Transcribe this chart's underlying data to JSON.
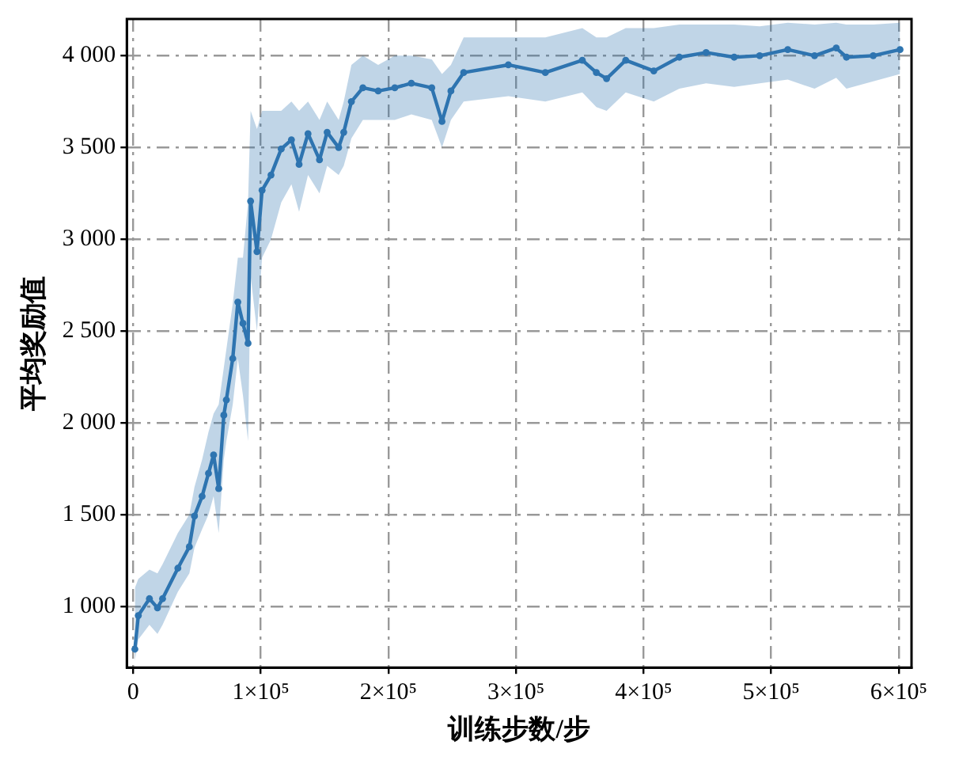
{
  "chart_data": {
    "type": "line",
    "xlabel": "训练步数/步",
    "ylabel": "平均奖励值",
    "xlim": [
      -5000,
      610000
    ],
    "ylim": [
      667,
      4200
    ],
    "xticks": [
      {
        "value": 0,
        "label": "0"
      },
      {
        "value": 100000,
        "label": "1×10⁵"
      },
      {
        "value": 200000,
        "label": "2×10⁵"
      },
      {
        "value": 300000,
        "label": "3×10⁵"
      },
      {
        "value": 400000,
        "label": "4×10⁵"
      },
      {
        "value": 500000,
        "label": "5×10⁵"
      },
      {
        "value": 600000,
        "label": "6×10⁵"
      }
    ],
    "yticks": [
      {
        "value": 1000,
        "label": "1 000"
      },
      {
        "value": 1500,
        "label": "1 500"
      },
      {
        "value": 2000,
        "label": "2 000"
      },
      {
        "value": 2500,
        "label": "2 500"
      },
      {
        "value": 3000,
        "label": "3 000"
      },
      {
        "value": 3500,
        "label": "3 500"
      },
      {
        "value": 4000,
        "label": "4 000"
      }
    ],
    "grid": true,
    "legend": false,
    "marker": "circle",
    "line_style": "solid",
    "series": [
      {
        "color": "#2e75b0",
        "x": [
          1300,
          4000,
          12700,
          19000,
          23000,
          35000,
          44000,
          48000,
          54000,
          59000,
          63000,
          67000,
          71000,
          73000,
          78000,
          82000,
          86000,
          90000,
          92000,
          97000,
          101000,
          108000,
          116000,
          124000,
          130000,
          137000,
          146000,
          152000,
          161000,
          165000,
          171000,
          180000,
          192000,
          205000,
          218000,
          234000,
          242000,
          249000,
          259000,
          294000,
          323000,
          352000,
          363000,
          371000,
          386000,
          408000,
          428000,
          449000,
          471000,
          491000,
          513000,
          534000,
          551000,
          559000,
          580000,
          601000
        ],
        "values": [
          767,
          950,
          1042,
          992,
          1042,
          1208,
          1325,
          1492,
          1600,
          1725,
          1825,
          1642,
          2042,
          2125,
          2350,
          2658,
          2542,
          2433,
          3208,
          2933,
          3267,
          3350,
          3492,
          3542,
          3408,
          3575,
          3433,
          3583,
          3500,
          3583,
          3750,
          3825,
          3808,
          3825,
          3850,
          3825,
          3642,
          3808,
          3908,
          3950,
          3908,
          3975,
          3908,
          3875,
          3975,
          3917,
          3992,
          4017,
          3992,
          4000,
          4033,
          4000,
          4042,
          3992,
          4000,
          4033
        ],
        "lower": [
          700,
          820,
          900,
          850,
          900,
          1080,
          1180,
          1320,
          1420,
          1500,
          1600,
          1400,
          1800,
          1900,
          2100,
          2350,
          2150,
          1900,
          2800,
          2500,
          2900,
          3000,
          3200,
          3300,
          3150,
          3350,
          3250,
          3400,
          3350,
          3400,
          3550,
          3650,
          3650,
          3650,
          3680,
          3650,
          3500,
          3650,
          3750,
          3780,
          3750,
          3800,
          3720,
          3700,
          3800,
          3750,
          3820,
          3850,
          3830,
          3850,
          3870,
          3820,
          3880,
          3820,
          3860,
          3900
        ],
        "upper": [
          1100,
          1150,
          1200,
          1180,
          1230,
          1400,
          1500,
          1650,
          1800,
          1950,
          2050,
          2100,
          2300,
          2400,
          2650,
          2900,
          2900,
          3200,
          3700,
          3600,
          3700,
          3700,
          3700,
          3750,
          3700,
          3750,
          3650,
          3750,
          3650,
          3750,
          3950,
          4000,
          3950,
          4000,
          4000,
          3980,
          3900,
          3950,
          4100,
          4100,
          4100,
          4150,
          4100,
          4100,
          4150,
          4150,
          4170,
          4170,
          4170,
          4160,
          4180,
          4170,
          4180,
          4170,
          4170,
          4180
        ]
      }
    ]
  }
}
